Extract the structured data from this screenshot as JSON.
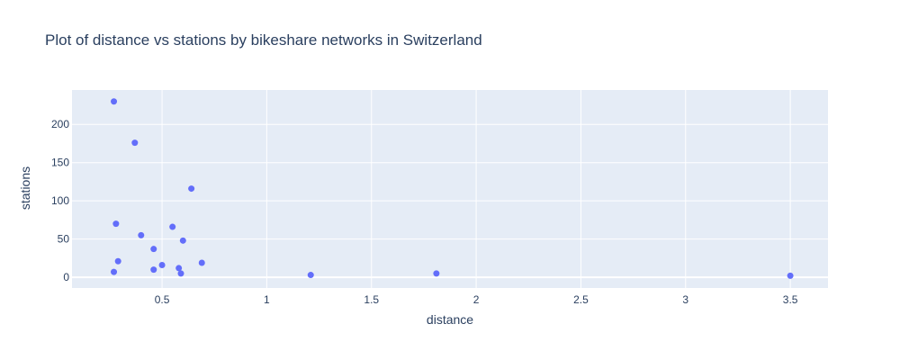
{
  "chart_data": {
    "type": "scatter",
    "title": "Plot of distance vs stations by bikeshare networks in Switzerland",
    "xlabel": "distance",
    "ylabel": "stations",
    "xlim": [
      0.07,
      3.68
    ],
    "ylim": [
      -14,
      245
    ],
    "x_ticks": [
      0.5,
      1,
      1.5,
      2,
      2.5,
      3,
      3.5
    ],
    "x_tick_labels": [
      "0.5",
      "1",
      "1.5",
      "2",
      "2.5",
      "3",
      "3.5"
    ],
    "y_ticks": [
      0,
      50,
      100,
      150,
      200
    ],
    "y_tick_labels": [
      "0",
      "50",
      "100",
      "150",
      "200"
    ],
    "grid": true,
    "marker_color": "#636efa",
    "plot_bg": "#e5ecf6",
    "points": [
      {
        "x": 0.27,
        "y": 230
      },
      {
        "x": 0.37,
        "y": 176
      },
      {
        "x": 0.64,
        "y": 116
      },
      {
        "x": 0.28,
        "y": 70
      },
      {
        "x": 0.55,
        "y": 66
      },
      {
        "x": 0.4,
        "y": 55
      },
      {
        "x": 0.6,
        "y": 48
      },
      {
        "x": 0.46,
        "y": 37
      },
      {
        "x": 0.29,
        "y": 21
      },
      {
        "x": 0.69,
        "y": 19
      },
      {
        "x": 0.5,
        "y": 16
      },
      {
        "x": 0.58,
        "y": 12
      },
      {
        "x": 0.46,
        "y": 10
      },
      {
        "x": 0.27,
        "y": 7
      },
      {
        "x": 0.59,
        "y": 5
      },
      {
        "x": 1.21,
        "y": 3
      },
      {
        "x": 1.81,
        "y": 5
      },
      {
        "x": 3.5,
        "y": 2
      }
    ]
  }
}
